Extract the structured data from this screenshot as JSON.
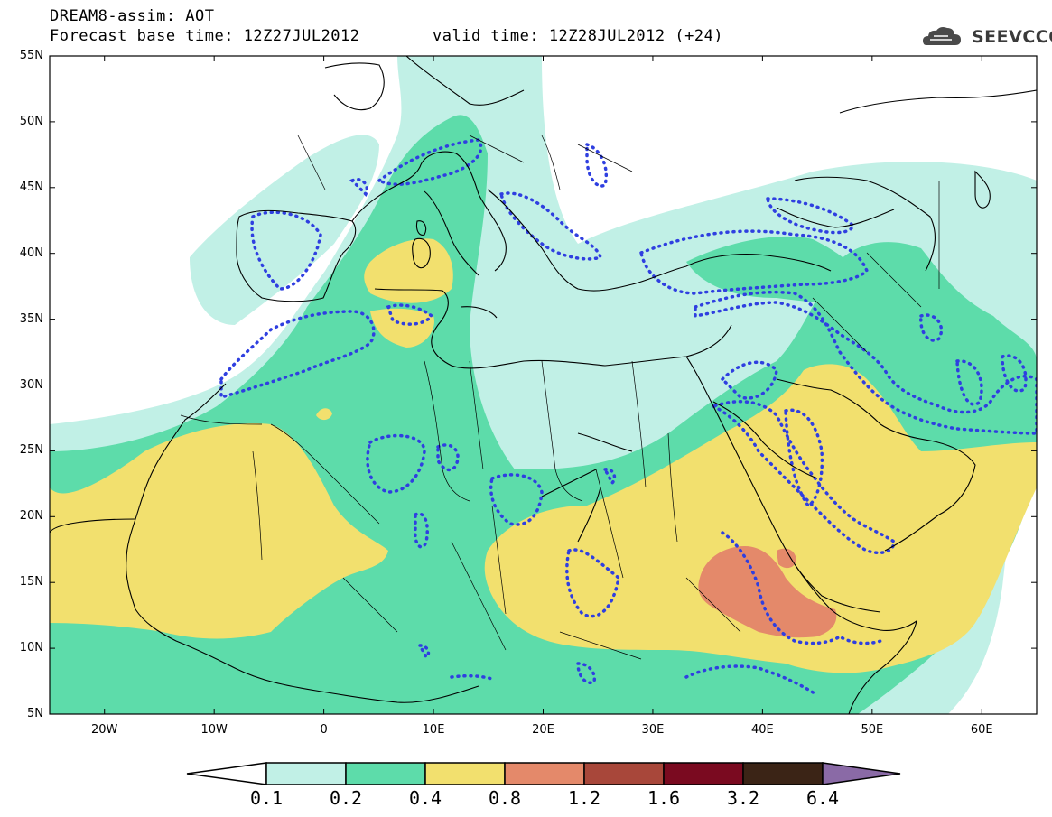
{
  "header": {
    "title": "DREAM8-assim: AOT",
    "base_time": "Forecast base time: 12Z27JUL2012",
    "valid_time": "valid time: 12Z28JUL2012 (+24)",
    "logo_text": "SEEVCCC"
  },
  "map": {
    "lat_labels": [
      "55N",
      "50N",
      "45N",
      "40N",
      "35N",
      "30N",
      "25N",
      "20N",
      "15N",
      "10N",
      "5N"
    ],
    "lon_labels": [
      "20W",
      "10W",
      "0",
      "10E",
      "20E",
      "30E",
      "40E",
      "50E",
      "60E"
    ],
    "lat_range": [
      5,
      55
    ],
    "lon_range": [
      -25,
      65
    ],
    "lat_step": 5,
    "lon_step": 10
  },
  "colorbar": {
    "labels": [
      "0.1",
      "0.2",
      "0.4",
      "0.8",
      "1.2",
      "1.6",
      "3.2",
      "6.4"
    ],
    "colors": [
      "#ffffff",
      "#c1f0e6",
      "#5ddcaa",
      "#f2e06e",
      "#e4896a",
      "#a8473a",
      "#7a0a20",
      "#3b2416",
      "#8a6aa6"
    ]
  },
  "colors": {
    "aot_01_02": "#c1f0e6",
    "aot_02_04": "#5ddcaa",
    "aot_04_08": "#f2e06e",
    "aot_08_12": "#e4896a",
    "contour": "#2f3fe0",
    "coast": "#000000"
  }
}
